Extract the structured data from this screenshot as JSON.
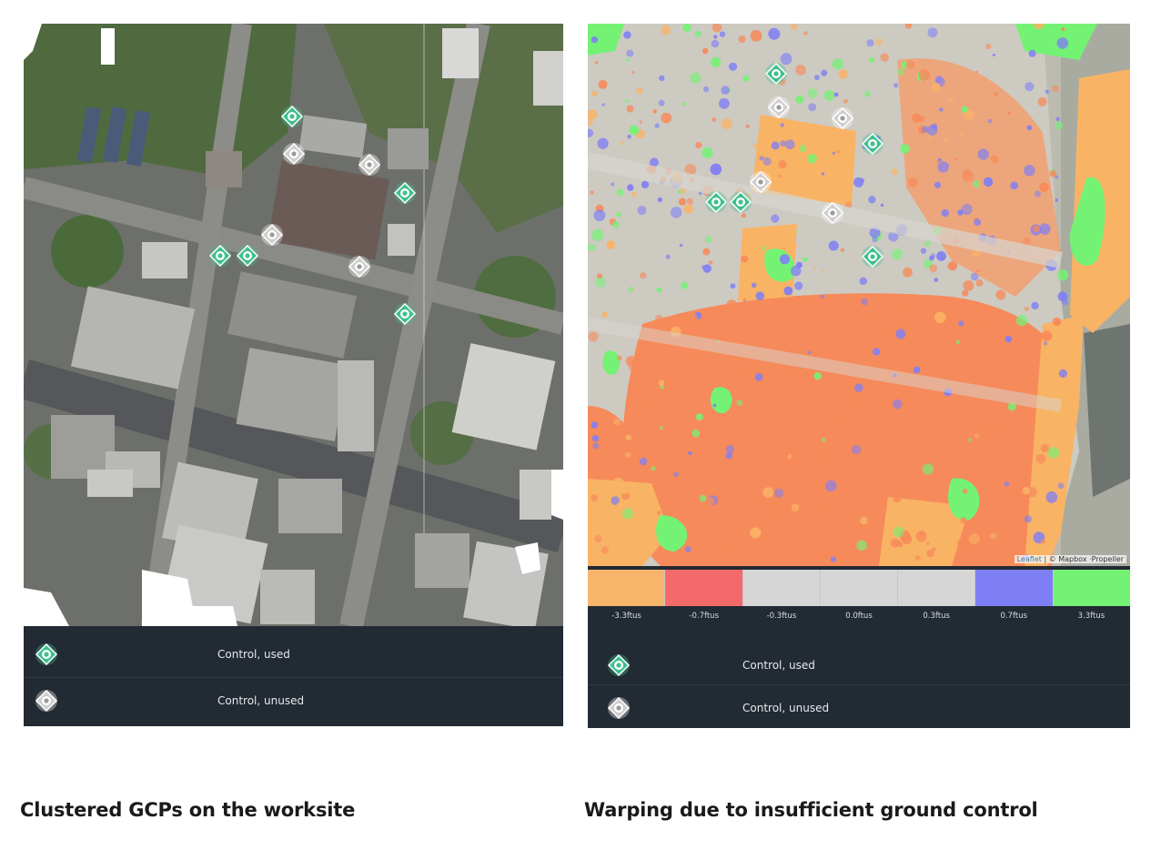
{
  "left_panel": {
    "legend": [
      {
        "icon": "gcp-used-icon",
        "label": "Control, used"
      },
      {
        "icon": "gcp-unused-icon",
        "label": "Control, unused"
      }
    ],
    "caption": "Clustered GCPs on the worksite"
  },
  "right_panel": {
    "scale": {
      "labels": [
        "-3.3ftus",
        "-0.7ftus",
        "-0.3ftus",
        "0.0ftus",
        "0.3ftus",
        "0.7ftus",
        "3.3ftus"
      ],
      "colors": [
        "#f6b56a",
        "#f46a6a",
        "#d6d6d6",
        "#d6d6d6",
        "#d6d6d6",
        "#7f7ff5",
        "#74f274"
      ]
    },
    "attribution": {
      "link": "Leaflet",
      "text": "| © Mapbox ·Propeller"
    },
    "legend": [
      {
        "icon": "gcp-used-icon",
        "label": "Control, used"
      },
      {
        "icon": "gcp-unused-icon",
        "label": "Control, unused"
      }
    ],
    "caption": "Warping due to insufficient ground control"
  },
  "colors": {
    "gcp_used": "#3fbf8f",
    "gcp_unused": "#d9d9d9",
    "legend_bg": "#222a33"
  }
}
